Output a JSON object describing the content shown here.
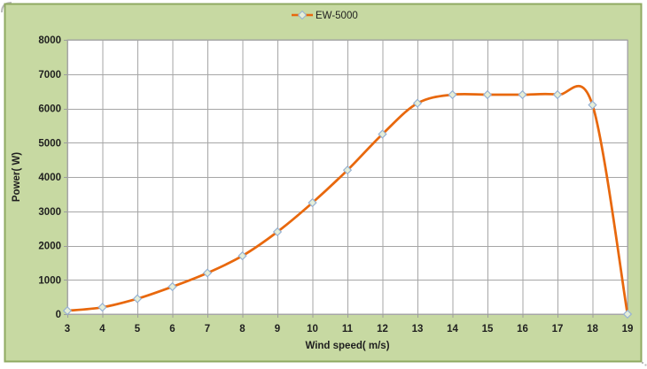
{
  "window": {
    "background": "#ffffff"
  },
  "chart": {
    "background": "#c7d9a2",
    "border_color": "#8fa961",
    "plot_background": "#ffffff",
    "gridline_color": "#a6a6a6",
    "axis_color": "#9c9c9c",
    "text_color": "#1f1f1f"
  },
  "legend": {
    "label": "EW-5000",
    "line_color": "#e8680d",
    "marker": "open-diamond"
  },
  "axes": {
    "x_title": "Wind speed( m/s)",
    "y_title": "Power( W)"
  },
  "chart_data": {
    "type": "line",
    "title": "",
    "xlabel": "Wind speed( m/s)",
    "ylabel": "Power( W)",
    "x_ticks": [
      3,
      4,
      5,
      6,
      7,
      8,
      9,
      10,
      11,
      12,
      13,
      14,
      15,
      16,
      17,
      18,
      19
    ],
    "y_ticks": [
      0,
      1000,
      2000,
      3000,
      4000,
      5000,
      6000,
      7000,
      8000
    ],
    "xlim": [
      3,
      19
    ],
    "ylim": [
      0,
      8000
    ],
    "grid": true,
    "smooth": true,
    "legend_position": "top-center",
    "series": [
      {
        "name": "EW-5000",
        "color": "#e8680d",
        "marker": "diamond",
        "marker_fill": "#e5eed8",
        "marker_stroke": "#96b1d3",
        "x": [
          3,
          4,
          5,
          6,
          7,
          8,
          9,
          10,
          11,
          12,
          13,
          14,
          15,
          16,
          17,
          18,
          19
        ],
        "values": [
          100,
          200,
          450,
          800,
          1200,
          1700,
          2400,
          3250,
          4200,
          5250,
          6150,
          6400,
          6400,
          6400,
          6400,
          6100,
          0
        ]
      }
    ]
  }
}
